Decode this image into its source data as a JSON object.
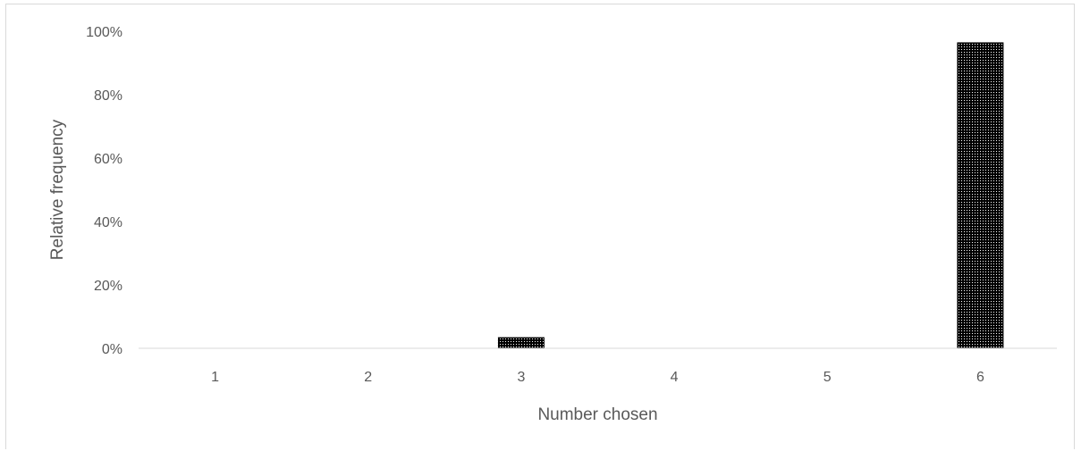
{
  "chart_data": {
    "type": "bar",
    "title": "",
    "xlabel": "Number chosen",
    "ylabel": "Relative frequency",
    "categories": [
      "1",
      "2",
      "3",
      "4",
      "5",
      "6"
    ],
    "values": [
      0,
      0,
      3.5,
      0,
      0,
      96.5
    ],
    "ylim": [
      0,
      100
    ],
    "ytick_labels": [
      "0%",
      "20%",
      "40%",
      "60%",
      "80%",
      "100%"
    ],
    "yticks": [
      0,
      20,
      40,
      60,
      80,
      100
    ],
    "grid": false,
    "legend": "none",
    "bar_pattern": "dotted-black",
    "colors": {
      "bar_fill": "#000000",
      "axis": "#d9d9d9",
      "text": "#595959"
    }
  }
}
